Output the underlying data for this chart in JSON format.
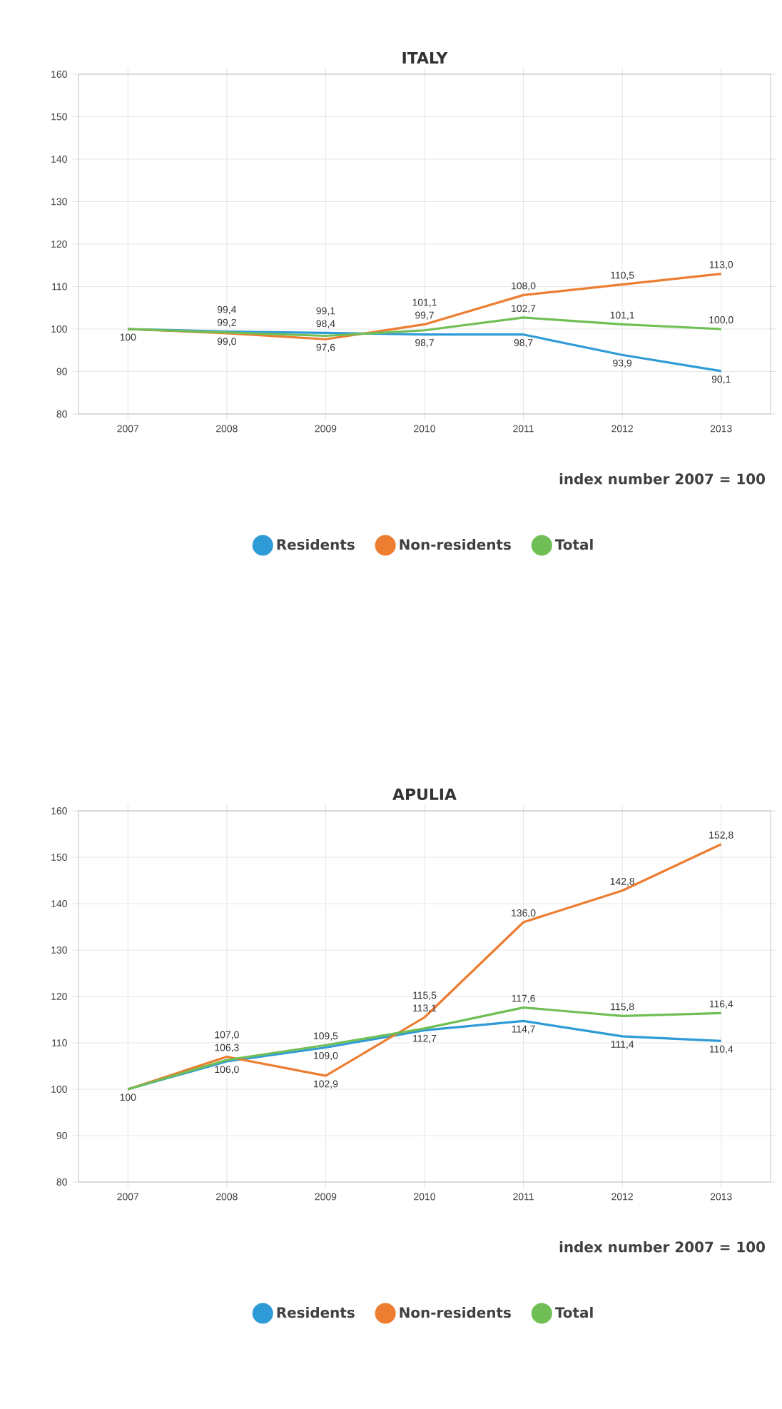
{
  "chart_data": [
    {
      "type": "line",
      "title": "ITALY",
      "annotations": [
        "index number 2007 = 100"
      ],
      "categories": [
        "2007",
        "2008",
        "2009",
        "2010",
        "2011",
        "2012",
        "2013"
      ],
      "series": [
        {
          "name": "Residents",
          "color": "#2e9bd6",
          "values": [
            100,
            99.4,
            99.1,
            98.7,
            98.7,
            93.9,
            90.1
          ],
          "value_labels": [
            null,
            "99,4",
            "99,1",
            "98,7",
            "98,7",
            "93,9",
            "90,1"
          ]
        },
        {
          "name": "Non-residents",
          "color": "#ed7d31",
          "values": [
            100,
            99.0,
            97.6,
            101.1,
            108.0,
            110.5,
            113.0
          ],
          "value_labels": [
            null,
            "99,0",
            "97,6",
            "101,1",
            "108,0",
            "110,5",
            "113,0"
          ]
        },
        {
          "name": "Total",
          "color": "#70bf56",
          "values": [
            100,
            99.2,
            98.4,
            99.7,
            102.7,
            101.1,
            100.0
          ],
          "value_labels": [
            "100",
            "99,2",
            "98,4",
            "99,7",
            "102,7",
            "101,1",
            "100,0"
          ]
        }
      ],
      "ylim": [
        80,
        160
      ],
      "yticks": [
        80,
        90,
        100,
        110,
        120,
        130,
        140,
        150,
        160
      ],
      "grid": true,
      "legend": "bottom"
    },
    {
      "type": "line",
      "title": "APULIA",
      "annotations": [
        "index number 2007 = 100"
      ],
      "categories": [
        "2007",
        "2008",
        "2009",
        "2010",
        "2011",
        "2012",
        "2013"
      ],
      "series": [
        {
          "name": "Residents",
          "color": "#2e9bd6",
          "values": [
            100,
            106.0,
            109.0,
            112.7,
            114.7,
            111.4,
            110.4
          ],
          "value_labels": [
            null,
            "106,0",
            "109,0",
            "112,7",
            "114,7",
            "111,4",
            "110,4"
          ]
        },
        {
          "name": "Non-residents",
          "color": "#ed7d31",
          "values": [
            100,
            107.0,
            102.9,
            115.5,
            136.0,
            142.8,
            152.8
          ],
          "value_labels": [
            null,
            "107,0",
            "102,9",
            "115,5",
            "136,0",
            "142,8",
            "152,8"
          ]
        },
        {
          "name": "Total",
          "color": "#70bf56",
          "values": [
            100,
            106.3,
            109.5,
            113.1,
            117.6,
            115.8,
            116.4
          ],
          "value_labels": [
            "100",
            "106,3",
            "109,5",
            "113,1",
            "117,6",
            "115,8",
            "116,4"
          ]
        }
      ],
      "ylim": [
        80,
        160
      ],
      "yticks": [
        80,
        90,
        100,
        110,
        120,
        130,
        140,
        150,
        160
      ],
      "grid": true,
      "legend": "bottom"
    }
  ]
}
